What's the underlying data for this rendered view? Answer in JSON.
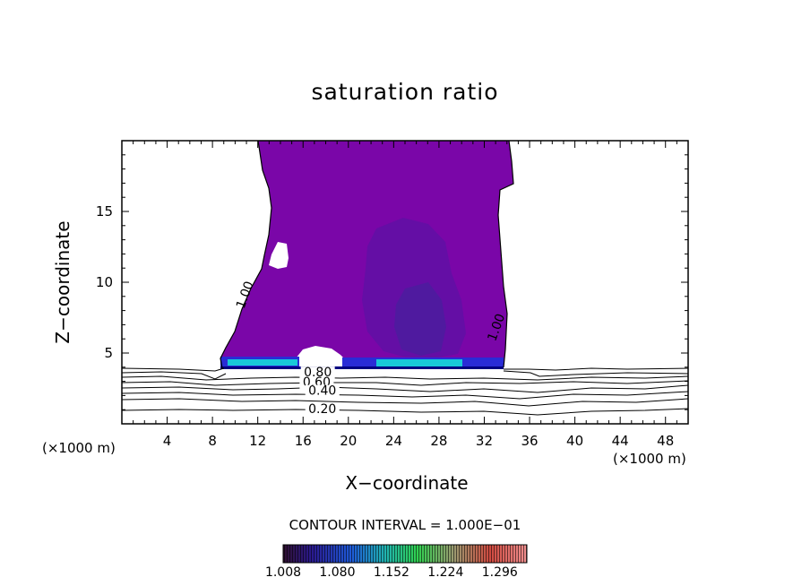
{
  "chart_data": {
    "type": "contour",
    "title": "saturation ratio",
    "xlabel": "X−coordinate",
    "ylabel": "Z−coordinate",
    "x_unit_left": "(×1000 m)",
    "x_unit_right": "(×1000 m)",
    "xlim": [
      0,
      50
    ],
    "ylim": [
      0,
      20
    ],
    "x_ticks": [
      4,
      8,
      12,
      16,
      20,
      24,
      28,
      32,
      36,
      40,
      44,
      48
    ],
    "x_tick_labels": [
      "4",
      "8",
      "12",
      "16",
      "20",
      "24",
      "28",
      "32",
      "36",
      "40",
      "44",
      "48"
    ],
    "y_ticks": [
      5,
      10,
      15
    ],
    "y_tick_labels": [
      "5",
      "10",
      "15"
    ],
    "contour_labels": [
      {
        "text": "1.00",
        "x": 10.9,
        "z": 9.1
      },
      {
        "text": "1.00",
        "x": 33.1,
        "z": 6.8
      },
      {
        "text": "0.80",
        "x": 17.3,
        "z": 3.6
      },
      {
        "text": "0.60",
        "x": 17.2,
        "z": 2.9
      },
      {
        "text": "0.40",
        "x": 17.7,
        "z": 2.3
      },
      {
        "text": "0.20",
        "x": 17.7,
        "z": 1.0
      }
    ],
    "contour_interval": "CONTOUR INTERVAL = 1.000E−01",
    "colorbar": {
      "min": 1.008,
      "max": 1.332,
      "tick_values": [
        1.008,
        1.08,
        1.152,
        1.224,
        1.296
      ],
      "tick_labels": [
        "1.008",
        "1.080",
        "1.152",
        "1.224",
        "1.296"
      ]
    },
    "colors": {
      "cloud": "#7a06a8",
      "cloud_core": "#5a18a0",
      "cloud_base": "#2a2cd6",
      "cloud_base_bright": "#18c8d8"
    },
    "grid": false
  }
}
